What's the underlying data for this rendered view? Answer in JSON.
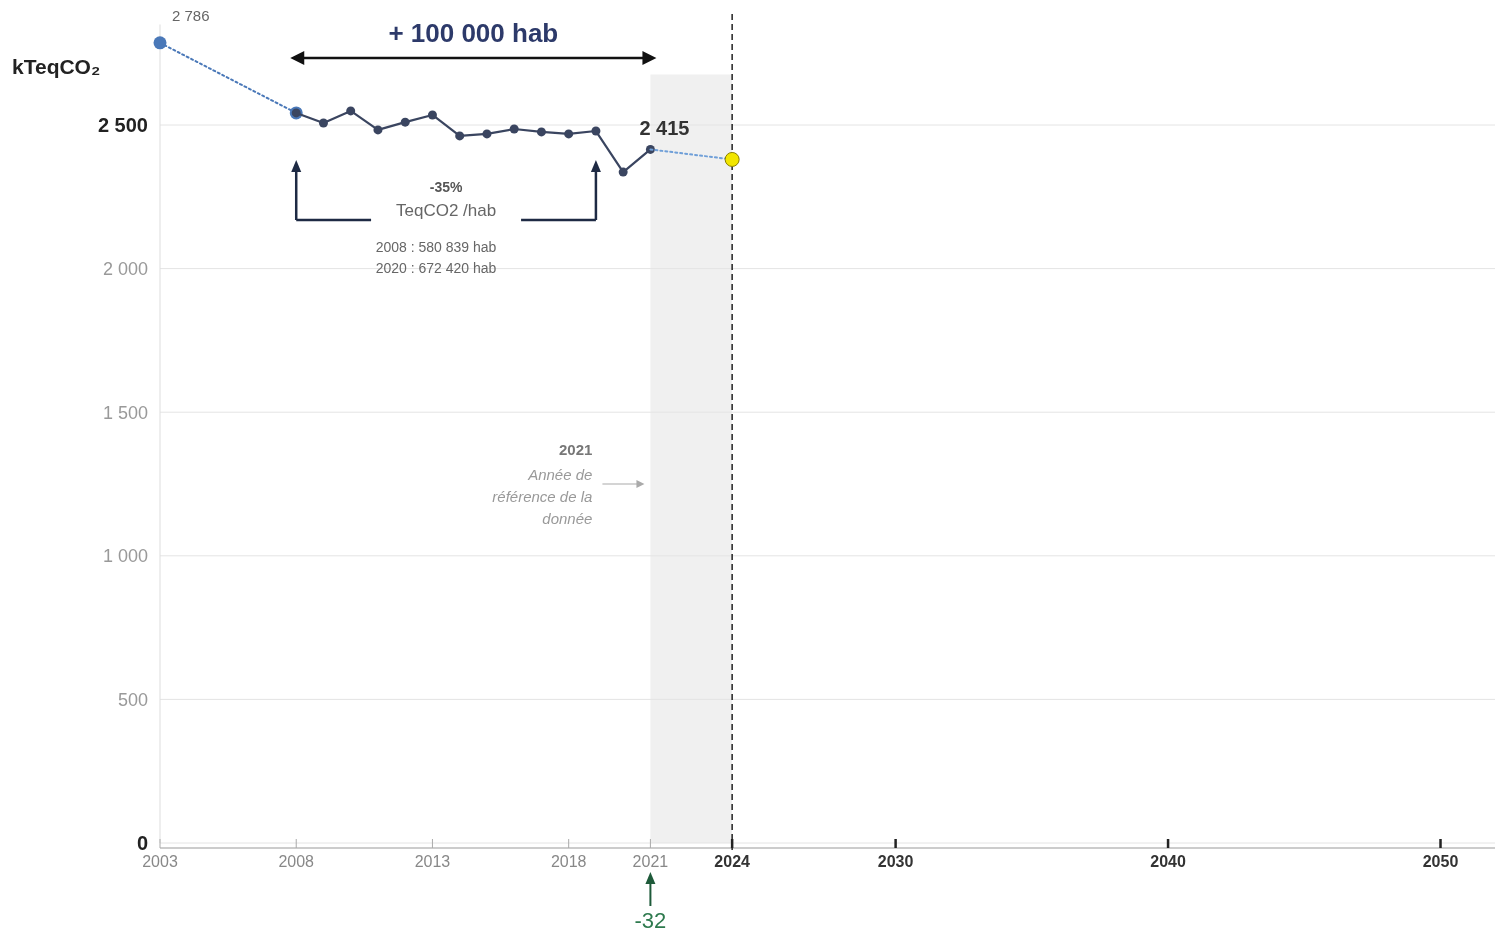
{
  "chart_data": {
    "type": "line",
    "ylabel": "kTeqCO₂",
    "xlim": [
      2003,
      2052
    ],
    "xticks": [
      2003,
      2008,
      2013,
      2018,
      2021,
      2024,
      2030,
      2040,
      2050
    ],
    "ylim": [
      0,
      2850
    ],
    "yticks": [
      {
        "value": 0,
        "label": "0"
      },
      {
        "value": 500,
        "label": "500"
      },
      {
        "value": 1000,
        "label": "1 000"
      },
      {
        "value": 1500,
        "label": "1 500"
      },
      {
        "value": 2000,
        "label": "2 000"
      },
      {
        "value": 2500,
        "label": "2 500"
      }
    ],
    "grid": "y",
    "marker": "circle",
    "series": [
      {
        "x": [
          2003,
          2008
        ],
        "values": [
          2786,
          2542
        ],
        "color": "#4a78b8",
        "line_style": "dotted",
        "value_labels": [
          "2 786",
          null
        ]
      },
      {
        "x": [
          2008,
          2009,
          2010,
          2011,
          2012,
          2013,
          2014,
          2015,
          2016,
          2017,
          2018,
          2019,
          2020,
          2021
        ],
        "values": [
          2542,
          2507,
          2549,
          2483,
          2510,
          2535,
          2462,
          2469,
          2486,
          2476,
          2469,
          2479,
          2336,
          2415
        ],
        "color": "#3a4560",
        "line_style": "solid",
        "value_labels": [
          null,
          null,
          null,
          null,
          null,
          null,
          null,
          null,
          null,
          null,
          null,
          null,
          null,
          "2 415"
        ]
      },
      {
        "x": [
          2021,
          2024
        ],
        "values": [
          2415,
          2380
        ],
        "color": "#6f9fd8",
        "line_style": "dotted",
        "marker": "none"
      },
      {
        "type": "scatter",
        "x": [
          2024
        ],
        "values": [
          2380
        ],
        "color": "#f2e600"
      }
    ],
    "bands": [
      {
        "axis": "x",
        "from": 2021,
        "to": 2024,
        "color": "#f0f0f0"
      }
    ],
    "ref_lines": [
      {
        "axis": "x",
        "value": 2024,
        "color": "#222222",
        "line_style": "dashed"
      }
    ],
    "annotations": [
      "+ 100 000 hab",
      "-35%",
      "TeqCO2 /hab",
      "2008 : 580 839 hab",
      "2020 : 672 420 hab",
      "2021",
      "Année de référence de la donnée",
      "-32"
    ]
  }
}
